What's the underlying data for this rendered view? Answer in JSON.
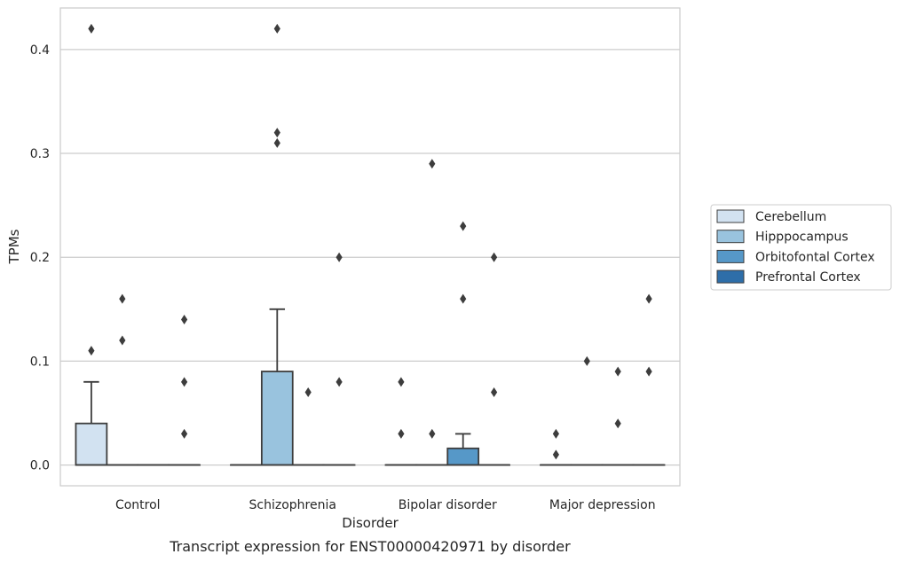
{
  "chart_data": {
    "type": "box",
    "caption": "Transcript expression for ENST00000420971 by disorder",
    "xlabel": "Disorder",
    "ylabel": "TPMs",
    "categories": [
      "Control",
      "Schizophrenia",
      "Bipolar disorder",
      "Major depression"
    ],
    "ylim": [
      -0.02,
      0.44
    ],
    "yticks": [
      "0.0",
      "0.1",
      "0.2",
      "0.3",
      "0.4"
    ],
    "grid": "horizontal",
    "legend_position": "right",
    "series": [
      {
        "name": "Cerebellum",
        "color": "#d2e2f1"
      },
      {
        "name": "Hipppocampus",
        "color": "#99c3de"
      },
      {
        "name": "Orbitofontal Cortex",
        "color": "#5698c8"
      },
      {
        "name": "Prefrontal Cortex",
        "color": "#2e6ea9"
      }
    ],
    "boxes": [
      [
        {
          "q1": 0,
          "median": 0,
          "q3": 0.04,
          "whisker_low": 0,
          "whisker_high": 0.08,
          "outliers": [
            0.11,
            0.42
          ]
        },
        {
          "q1": 0,
          "median": 0,
          "q3": 0,
          "whisker_low": 0,
          "whisker_high": 0,
          "outliers": [
            0.12,
            0.16
          ]
        },
        {
          "q1": 0,
          "median": 0,
          "q3": 0,
          "whisker_low": 0,
          "whisker_high": 0,
          "outliers": []
        },
        {
          "q1": 0,
          "median": 0,
          "q3": 0,
          "whisker_low": 0,
          "whisker_high": 0,
          "outliers": [
            0.03,
            0.08,
            0.14
          ]
        }
      ],
      [
        {
          "q1": 0,
          "median": 0,
          "q3": 0,
          "whisker_low": 0,
          "whisker_high": 0,
          "outliers": []
        },
        {
          "q1": 0,
          "median": 0,
          "q3": 0.09,
          "whisker_low": 0,
          "whisker_high": 0.15,
          "outliers": [
            0.31,
            0.32,
            0.42
          ]
        },
        {
          "q1": 0,
          "median": 0,
          "q3": 0,
          "whisker_low": 0,
          "whisker_high": 0,
          "outliers": [
            0.07
          ]
        },
        {
          "q1": 0,
          "median": 0,
          "q3": 0,
          "whisker_low": 0,
          "whisker_high": 0,
          "outliers": [
            0.08,
            0.2
          ]
        }
      ],
      [
        {
          "q1": 0,
          "median": 0,
          "q3": 0,
          "whisker_low": 0,
          "whisker_high": 0,
          "outliers": [
            0.03,
            0.08
          ]
        },
        {
          "q1": 0,
          "median": 0,
          "q3": 0,
          "whisker_low": 0,
          "whisker_high": 0,
          "outliers": [
            0.03,
            0.29
          ]
        },
        {
          "q1": 0,
          "median": 0,
          "q3": 0.016,
          "whisker_low": 0,
          "whisker_high": 0.03,
          "outliers": [
            0.16,
            0.23
          ]
        },
        {
          "q1": 0,
          "median": 0,
          "q3": 0,
          "whisker_low": 0,
          "whisker_high": 0,
          "outliers": [
            0.07,
            0.2
          ]
        }
      ],
      [
        {
          "q1": 0,
          "median": 0,
          "q3": 0,
          "whisker_low": 0,
          "whisker_high": 0,
          "outliers": [
            0.01,
            0.03
          ]
        },
        {
          "q1": 0,
          "median": 0,
          "q3": 0,
          "whisker_low": 0,
          "whisker_high": 0,
          "outliers": [
            0.1
          ]
        },
        {
          "q1": 0,
          "median": 0,
          "q3": 0,
          "whisker_low": 0,
          "whisker_high": 0,
          "outliers": [
            0.04,
            0.09
          ]
        },
        {
          "q1": 0,
          "median": 0,
          "q3": 0,
          "whisker_low": 0,
          "whisker_high": 0,
          "outliers": [
            0.09,
            0.16
          ]
        }
      ]
    ]
  }
}
